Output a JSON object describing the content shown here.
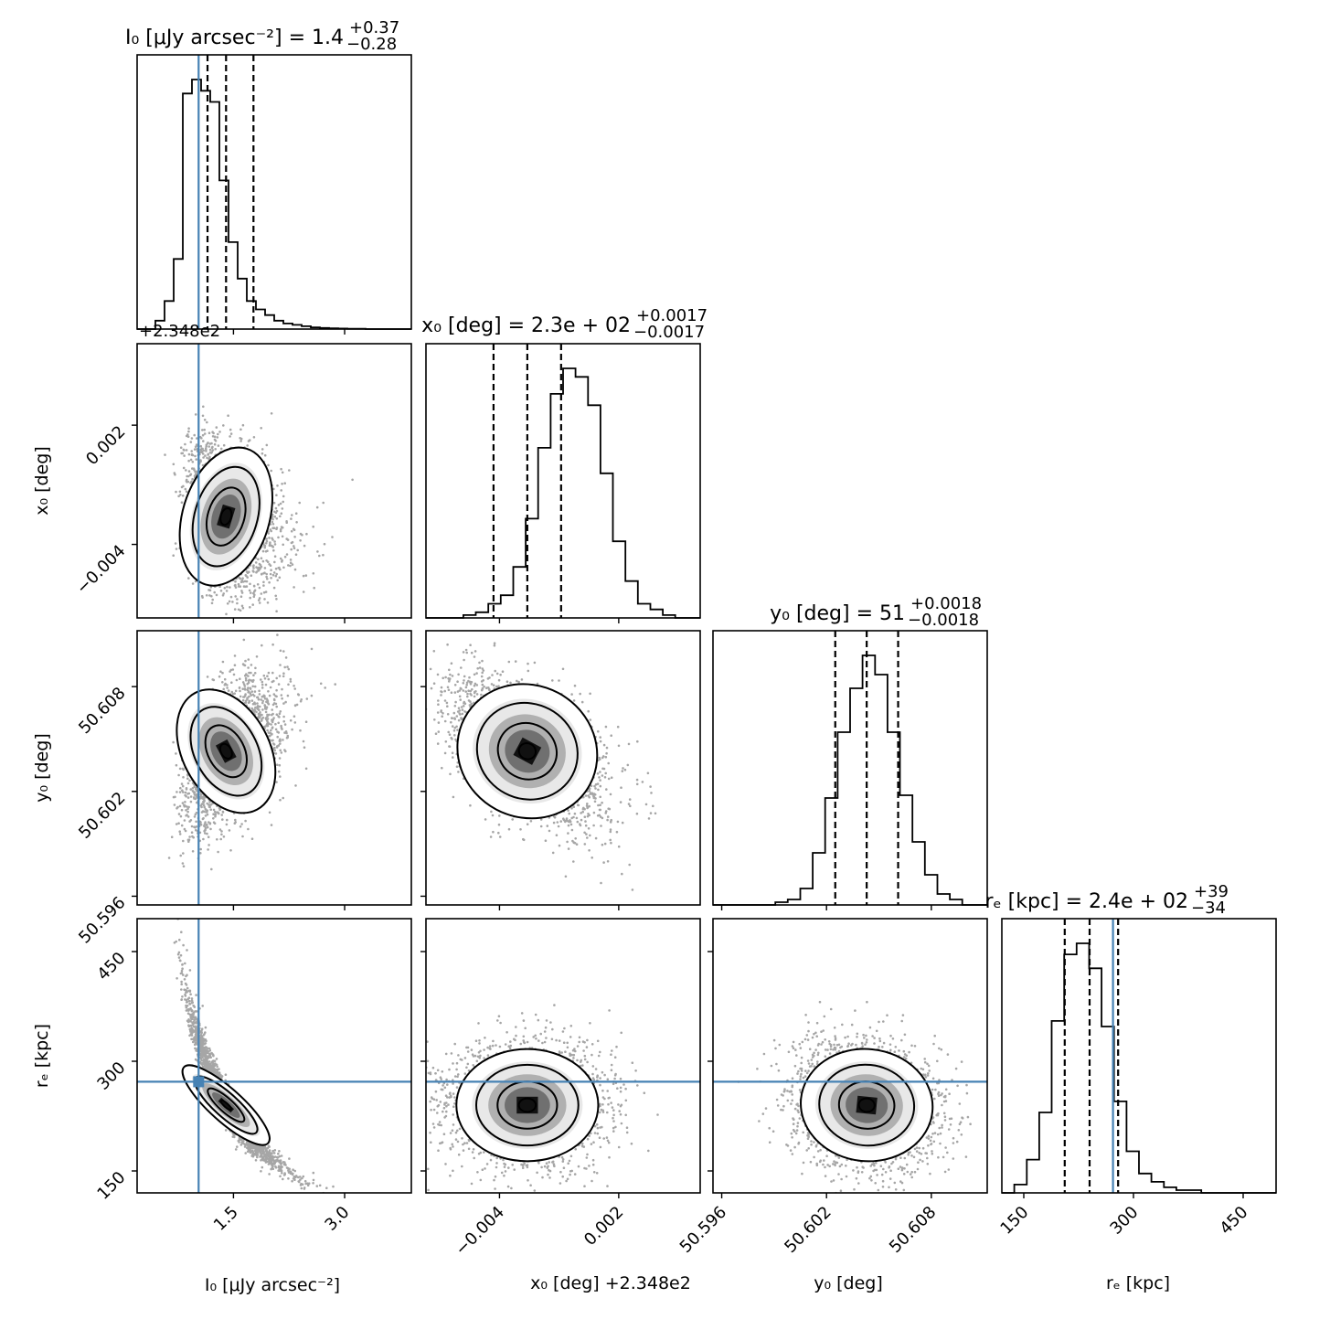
{
  "chart_data": {
    "type": "corner",
    "parameters": [
      "I0",
      "x0",
      "y0",
      "re"
    ],
    "axis_labels": {
      "I0": "I₀ [μJy arcsec⁻²]",
      "x0": "x₀ [deg] +2.348e2",
      "y0": "y₀ [deg]",
      "re": "rₑ [kpc]"
    },
    "titles": {
      "I0": "I₀ [μJy arcsec⁻²] = 1.4",
      "x0": "x₀ [deg] = 2.3e + 02",
      "y0": "y₀ [deg] = 51",
      "re": "rₑ [kpc] = 2.4e + 02"
    },
    "title_errors": {
      "I0": {
        "plus": "+0.37",
        "minus": "−0.28"
      },
      "x0": {
        "plus": "+0.0017",
        "minus": "−0.0017"
      },
      "y0": {
        "plus": "+0.0018",
        "minus": "−0.0018"
      },
      "re": {
        "plus": "+39",
        "minus": "−34"
      }
    },
    "offset_text": "+2.348e2",
    "ranges": {
      "I0": [
        0.2,
        3.9
      ],
      "x0": [
        -0.0077,
        0.0061
      ],
      "y0": [
        50.5955,
        50.6112
      ],
      "re": [
        120,
        495
      ]
    },
    "ticks": {
      "I0": {
        "values": [
          1.5,
          3.0
        ],
        "labels": [
          "1.5",
          "3.0"
        ]
      },
      "x0": {
        "values": [
          -0.004,
          0.002
        ],
        "labels": [
          "−0.004",
          "0.002"
        ]
      },
      "y0": {
        "values": [
          50.596,
          50.602,
          50.608
        ],
        "labels": [
          "50.596",
          "50.602",
          "50.608"
        ]
      },
      "re": {
        "values": [
          150,
          300,
          450
        ],
        "labels": [
          "150",
          "300",
          "450"
        ]
      }
    },
    "quantiles": {
      "I0": [
        1.15,
        1.4,
        1.77
      ],
      "x0": [
        -0.0043,
        -0.0026,
        -0.0009
      ],
      "y0": [
        50.6025,
        50.6043,
        50.6061
      ],
      "re": [
        206,
        240,
        279
      ]
    },
    "truths": {
      "I0": 1.03,
      "x0": null,
      "y0": null,
      "re": 272
    },
    "histograms": {
      "I0": {
        "edges_range": [
          0.2,
          3.9
        ],
        "counts": [
          0,
          0,
          3,
          10,
          25,
          84,
          89,
          85,
          81,
          53,
          31,
          18,
          10,
          7,
          5,
          3,
          2,
          1.5,
          1,
          0.6,
          0.4,
          0.3,
          0.2,
          0.1,
          0.1,
          0,
          0,
          0,
          0,
          0
        ]
      },
      "x0": {
        "edges_range": [
          -0.0077,
          0.0061
        ],
        "counts": [
          0,
          0,
          0,
          1,
          2,
          5,
          8,
          18,
          35,
          60,
          79,
          88,
          85,
          75,
          51,
          27,
          13,
          5,
          3,
          1,
          0,
          0
        ]
      },
      "y0": {
        "edges_range": [
          50.5955,
          50.6112
        ],
        "counts": [
          0,
          0,
          0,
          0,
          0,
          1,
          2,
          6,
          19,
          39,
          63,
          79,
          91,
          84,
          63,
          40,
          23,
          11,
          4,
          2,
          0,
          0
        ]
      },
      "re": {
        "edges_range": [
          120,
          495
        ],
        "counts": [
          0,
          3,
          12,
          29,
          62,
          86,
          90,
          81,
          60,
          33,
          15,
          7,
          4,
          2,
          1,
          1,
          0,
          0,
          0,
          0,
          0,
          0
        ]
      }
    },
    "correlations": {
      "x0|I0": -0.3,
      "y0|I0": 0.5,
      "y0|x0": -0.5,
      "re|I0": -0.78,
      "re|x0": 0.0,
      "re|y0": -0.1
    },
    "truth_color": "#4682b4",
    "grid": false,
    "legend": "none"
  }
}
